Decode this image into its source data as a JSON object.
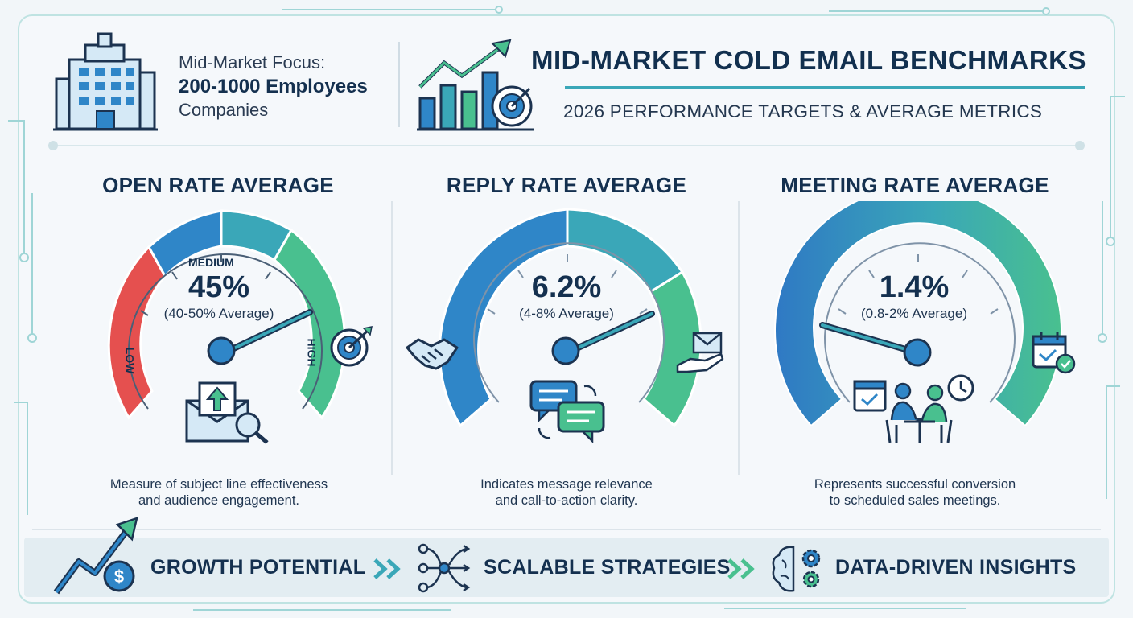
{
  "header": {
    "focus_line1": "Mid-Market Focus:",
    "focus_line2": "200-1000 Employees",
    "focus_line3": "Companies",
    "title": "MID-MARKET COLD EMAIL BENCHMARKS",
    "subtitle": "2026 PERFORMANCE TARGETS & AVERAGE METRICS"
  },
  "gauges": [
    {
      "title": "OPEN RATE AVERAGE",
      "value": "45%",
      "range": "(40-50% Average)",
      "desc_line1": "Measure of subject line effectiveness",
      "desc_line2": "and audience engagement.",
      "zone_low": "LOW",
      "zone_medium": "MEDIUM",
      "zone_high": "HIGH",
      "icon": "email-search-icon",
      "side_icon": "target-icon"
    },
    {
      "title": "REPLY RATE AVERAGE",
      "value": "6.2%",
      "range": "(4-8% Average)",
      "desc_line1": "Indicates message relevance",
      "desc_line2": "and call-to-action clarity.",
      "icon": "chat-bubbles-icon",
      "side_icon_left": "handshake-icon",
      "side_icon": "email-hand-icon"
    },
    {
      "title": "MEETING RATE AVERAGE",
      "value": "1.4%",
      "range": "(0.8-2% Average)",
      "desc_line1": "Represents successful conversion",
      "desc_line2": "to scheduled sales meetings.",
      "icon": "meeting-icon",
      "side_icon": "calendar-check-icon"
    }
  ],
  "footer": {
    "item1": "GROWTH POTENTIAL",
    "item2": "SCALABLE STRATEGIES",
    "item3": "DATA-DRIVEN INSIGHTS"
  },
  "colors": {
    "navy": "#14304f",
    "red": "#e5504f",
    "blue": "#2f86c8",
    "teal": "#3aa7b8",
    "green": "#49c08f"
  }
}
